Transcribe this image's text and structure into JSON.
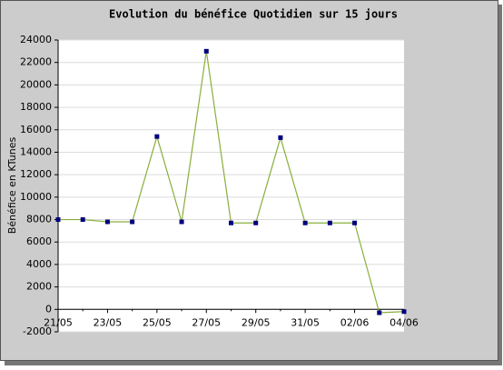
{
  "chart_data": {
    "type": "line",
    "title": "Evolution du bénéfice Quotidien sur 15 jours",
    "y_label": "Bénéfice en KTunes",
    "categories": [
      "21/05",
      null,
      "23/05",
      null,
      "25/05",
      null,
      "27/05",
      null,
      "29/05",
      null,
      "31/05",
      null,
      "02/06",
      null,
      "04/06"
    ],
    "series": [
      {
        "name": "Bénéfice",
        "color": "#8aae3c",
        "marker_color": "#000080",
        "values": [
          8000,
          8000,
          7800,
          7800,
          15400,
          7800,
          23000,
          7700,
          7700,
          15300,
          7700,
          7700,
          7700,
          -300,
          -200
        ]
      }
    ],
    "ylim": [
      -2000,
      24000
    ],
    "yticks": [
      -2000,
      0,
      2000,
      4000,
      6000,
      8000,
      10000,
      12000,
      14000,
      16000,
      18000,
      20000,
      22000,
      24000
    ],
    "grid": true
  }
}
